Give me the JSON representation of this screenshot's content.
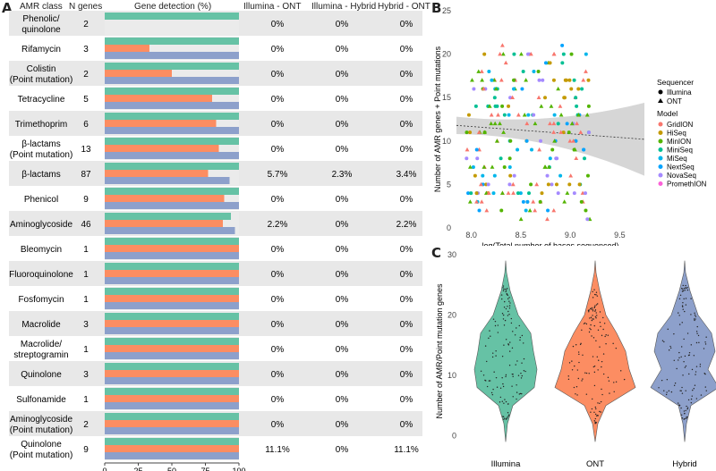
{
  "panels": {
    "a": "A",
    "b": "B",
    "c": "C"
  },
  "table_headers": {
    "amr_class": "AMR class",
    "n_genes": "N genes",
    "gene_detection": "Gene detection (%)",
    "illumina_ont": "Illumina - ONT",
    "illumina_hybrid": "Illumina - Hybrid",
    "hybrid_ont": "Hybrid - ONT"
  },
  "colors": {
    "illumina": "#66c2a5",
    "ont": "#fc8d62",
    "hybrid": "#8da0cb",
    "row_shade": "#e8e8e8",
    "bar_bg": "#ebebeb"
  },
  "chart_data": [
    {
      "type": "bar",
      "title": "Gene detection (%)",
      "series_order": [
        "Illumina",
        "ONT",
        "Hybrid"
      ],
      "xlim": [
        0,
        100
      ],
      "xticks": [
        "0",
        "25",
        "50",
        "75",
        "100"
      ],
      "rows": [
        {
          "cls": [
            "Phenolic/",
            "quinolone"
          ],
          "n": "2",
          "illumina": 100,
          "ont": 0,
          "hybrid": 0,
          "io": "0%",
          "ih": "0%",
          "ho": "0%"
        },
        {
          "cls": [
            "Rifamycin"
          ],
          "n": "3",
          "illumina": 100,
          "ont": 33.3,
          "hybrid": 100,
          "io": "0%",
          "ih": "0%",
          "ho": "0%"
        },
        {
          "cls": [
            "Colistin",
            "(Point mutation)"
          ],
          "n": "2",
          "illumina": 100,
          "ont": 50,
          "hybrid": 100,
          "io": "0%",
          "ih": "0%",
          "ho": "0%"
        },
        {
          "cls": [
            "Tetracycline"
          ],
          "n": "5",
          "illumina": 100,
          "ont": 80,
          "hybrid": 100,
          "io": "0%",
          "ih": "0%",
          "ho": "0%"
        },
        {
          "cls": [
            "Trimethoprim"
          ],
          "n": "6",
          "illumina": 100,
          "ont": 83,
          "hybrid": 100,
          "io": "0%",
          "ih": "0%",
          "ho": "0%"
        },
        {
          "cls": [
            "β-lactams",
            "(Point mutation)"
          ],
          "n": "13",
          "illumina": 100,
          "ont": 85,
          "hybrid": 100,
          "io": "0%",
          "ih": "0%",
          "ho": "0%"
        },
        {
          "cls": [
            "β-lactams"
          ],
          "n": "87",
          "illumina": 100,
          "ont": 77,
          "hybrid": 93,
          "io": "5.7%",
          "ih": "2.3%",
          "ho": "3.4%"
        },
        {
          "cls": [
            "Phenicol"
          ],
          "n": "9",
          "illumina": 100,
          "ont": 89,
          "hybrid": 100,
          "io": "0%",
          "ih": "0%",
          "ho": "0%"
        },
        {
          "cls": [
            "Aminoglycoside"
          ],
          "n": "46",
          "illumina": 94,
          "ont": 88,
          "hybrid": 97,
          "io": "2.2%",
          "ih": "0%",
          "ho": "2.2%"
        },
        {
          "cls": [
            "Bleomycin"
          ],
          "n": "1",
          "illumina": 100,
          "ont": 100,
          "hybrid": 100,
          "io": "0%",
          "ih": "0%",
          "ho": "0%"
        },
        {
          "cls": [
            "Fluoroquinolone"
          ],
          "n": "1",
          "illumina": 100,
          "ont": 100,
          "hybrid": 100,
          "io": "0%",
          "ih": "0%",
          "ho": "0%"
        },
        {
          "cls": [
            "Fosfomycin"
          ],
          "n": "1",
          "illumina": 100,
          "ont": 100,
          "hybrid": 100,
          "io": "0%",
          "ih": "0%",
          "ho": "0%"
        },
        {
          "cls": [
            "Macrolide"
          ],
          "n": "3",
          "illumina": 100,
          "ont": 100,
          "hybrid": 100,
          "io": "0%",
          "ih": "0%",
          "ho": "0%"
        },
        {
          "cls": [
            "Macrolide/",
            "streptogramin"
          ],
          "n": "1",
          "illumina": 100,
          "ont": 100,
          "hybrid": 100,
          "io": "0%",
          "ih": "0%",
          "ho": "0%"
        },
        {
          "cls": [
            "Quinolone"
          ],
          "n": "3",
          "illumina": 100,
          "ont": 100,
          "hybrid": 100,
          "io": "0%",
          "ih": "0%",
          "ho": "0%"
        },
        {
          "cls": [
            "Sulfonamide"
          ],
          "n": "1",
          "illumina": 100,
          "ont": 100,
          "hybrid": 100,
          "io": "0%",
          "ih": "0%",
          "ho": "0%"
        },
        {
          "cls": [
            "Aminoglycoside",
            "(Point mutation)"
          ],
          "n": "2",
          "illumina": 100,
          "ont": 100,
          "hybrid": 100,
          "io": "0%",
          "ih": "0%",
          "ho": "0%"
        },
        {
          "cls": [
            "Quinolone",
            "(Point mutation)"
          ],
          "n": "9",
          "illumina": 100,
          "ont": 100,
          "hybrid": 100,
          "io": "11.1%",
          "ih": "0%",
          "ho": "11.1%"
        }
      ]
    },
    {
      "type": "scatter",
      "xlabel": "log(Total number of bases sequenced)",
      "ylabel": "Number of AMR genes + Point mutations",
      "xlim": [
        7.85,
        9.75
      ],
      "ylim": [
        0,
        25
      ],
      "xticks": [
        8.0,
        8.5,
        9.0,
        9.5
      ],
      "yticks": [
        0,
        5,
        10,
        15,
        20,
        25
      ],
      "trend": {
        "x0": 7.85,
        "y0": 11.8,
        "x1": 9.75,
        "y1": 10.2,
        "band_left": [
          10.8,
          12.8
        ],
        "band_mid": [
          10.7,
          11.7
        ],
        "band_right": [
          6.0,
          14.4
        ]
      },
      "legend_sequencer": {
        "title": "Sequencer",
        "items": [
          "Illumina",
          "ONT"
        ]
      },
      "legend_model": {
        "title": "Model",
        "items": [
          {
            "name": "GridION",
            "color": "#f8766d"
          },
          {
            "name": "HiSeq",
            "color": "#c49a00"
          },
          {
            "name": "MinION",
            "color": "#53b400"
          },
          {
            "name": "MiniSeq",
            "color": "#00c094"
          },
          {
            "name": "MiSeq",
            "color": "#00b6eb"
          },
          {
            "name": "NextSeq",
            "color": "#06a4ff"
          },
          {
            "name": "NovaSeq",
            "color": "#a58aff"
          },
          {
            "name": "PromethION",
            "color": "#fb61d7"
          }
        ]
      }
    },
    {
      "type": "violin",
      "ylabel": "Number of AMR/Point mutation genes",
      "ylim": [
        -2,
        30
      ],
      "yticks": [
        0,
        10,
        20,
        30
      ],
      "categories": [
        "Illumina",
        "ONT",
        "Hybrid"
      ],
      "colors": [
        "#66c2a5",
        "#fc8d62",
        "#8da0cb"
      ]
    }
  ]
}
